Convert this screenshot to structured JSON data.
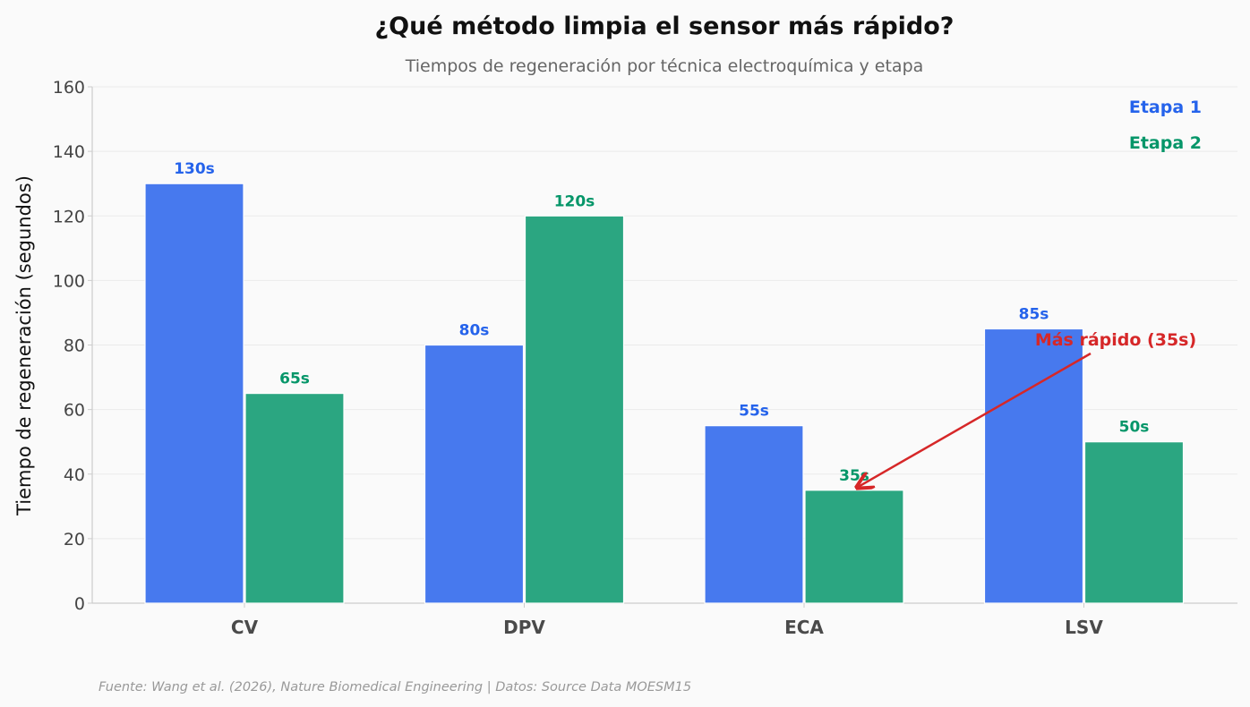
{
  "chart_data": {
    "type": "bar",
    "title": "¿Qué método limpia el sensor más rápido?",
    "subtitle": "Tiempos de regeneración por técnica electroquímica y etapa",
    "xlabel": "",
    "ylabel": "Tiempo de regeneración (segundos)",
    "ylim": [
      0,
      160
    ],
    "yticks": [
      0,
      20,
      40,
      60,
      80,
      100,
      120,
      140,
      160
    ],
    "categories": [
      "CV",
      "DPV",
      "ECA",
      "LSV"
    ],
    "series": [
      {
        "name": "Etapa 1",
        "color": "#4779ee",
        "label_color": "#2563eb",
        "values": [
          130,
          80,
          55,
          85
        ],
        "labels": [
          "130s",
          "80s",
          "55s",
          "85s"
        ]
      },
      {
        "name": "Etapa 2",
        "color": "#2ba681",
        "label_color": "#059669",
        "values": [
          65,
          120,
          35,
          50
        ],
        "labels": [
          "65s",
          "120s",
          "35s",
          "50s"
        ]
      }
    ],
    "grid": true,
    "legend_position": "top-right",
    "annotation": {
      "text": "Más rápido (35s)",
      "color": "#d62728",
      "target_category": "ECA",
      "target_series": "Etapa 2",
      "target_value": 35
    }
  },
  "source_text": "Fuente: Wang et al. (2026), Nature Biomedical Engineering | Datos: Source Data MOESM15"
}
